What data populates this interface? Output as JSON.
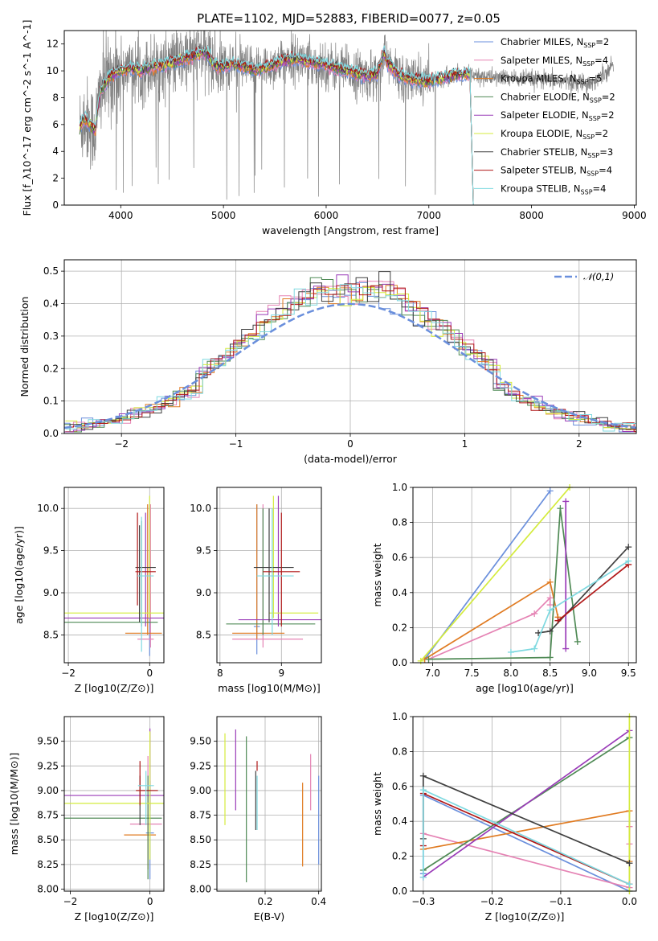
{
  "figure": {
    "title": "PLATE=1102, MJD=52883, FIBERID=0077, z=0.05"
  },
  "models": [
    {
      "name": "Chabrier MILES",
      "nssp": "2",
      "color": "#6a8fdc"
    },
    {
      "name": "Salpeter MILES",
      "nssp": "4",
      "color": "#e583b4"
    },
    {
      "name": "Kroupa MILES",
      "nssp": "5",
      "color": "#e07b22"
    },
    {
      "name": "Chabrier ELODIE",
      "nssp": "2",
      "color": "#4f8a55"
    },
    {
      "name": "Salpeter ELODIE",
      "nssp": "2",
      "color": "#9a3bb8"
    },
    {
      "name": "Kroupa ELODIE",
      "nssp": "2",
      "color": "#d4eb3c"
    },
    {
      "name": "Chabrier STELIB",
      "nssp": "3",
      "color": "#404040"
    },
    {
      "name": "Salpeter STELIB",
      "nssp": "4",
      "color": "#b01717"
    },
    {
      "name": "Kroupa STELIB",
      "nssp": "4",
      "color": "#7fd9e0"
    }
  ],
  "chart_data": [
    {
      "id": "spectrum",
      "type": "line",
      "xlabel": "wavelength [Angstrom, rest frame]",
      "ylabel": "Flux [f_λ10^-17 erg cm^-2 s^-1 A^-1]",
      "xlim": [
        3450,
        9020
      ],
      "ylim": [
        0,
        13
      ],
      "xticks": [
        4000,
        5000,
        6000,
        7000,
        8000,
        9000
      ],
      "yticks": [
        0,
        2,
        4,
        6,
        8,
        10,
        12
      ],
      "grid": false,
      "legend": "top-right",
      "data_series": {
        "name": "",
        "color": "#808080",
        "x_range": [
          3600,
          8800
        ]
      },
      "model_knots": {
        "x": [
          3600,
          3650,
          3700,
          3750,
          3800,
          3900,
          4000,
          4100,
          4200,
          4300,
          4400,
          4500,
          4600,
          4700,
          4800,
          4850,
          4900,
          5000,
          5100,
          5200,
          5300,
          5400,
          5500,
          5600,
          5700,
          5800,
          5900,
          6000,
          6100,
          6200,
          6300,
          6400,
          6500,
          6560,
          6600,
          6700,
          6800,
          6900,
          7000,
          7100,
          7200,
          7300,
          7400
        ],
        "y": [
          5.8,
          6.5,
          6.0,
          5.5,
          8.5,
          9.6,
          10.0,
          10.2,
          10.0,
          10.3,
          10.4,
          10.6,
          10.8,
          11.1,
          11.4,
          11.2,
          10.5,
          10.3,
          10.5,
          10.3,
          10.0,
          10.2,
          10.5,
          10.8,
          10.9,
          10.7,
          10.6,
          10.4,
          10.2,
          10.0,
          9.8,
          9.6,
          9.8,
          11.3,
          10.6,
          9.7,
          9.4,
          9.3,
          9.2,
          9.4,
          9.6,
          9.7,
          9.8
        ]
      }
    },
    {
      "id": "residuals",
      "type": "line",
      "xlabel": "(data-model)/error",
      "ylabel": "Normed distribution",
      "xlim": [
        -2.5,
        2.5
      ],
      "ylim": [
        0,
        0.535
      ],
      "xticks": [
        -2,
        -1,
        0,
        1,
        2
      ],
      "yticks": [
        0.0,
        0.1,
        0.2,
        0.3,
        0.4,
        0.5
      ],
      "grid": true,
      "legend": "top-right",
      "normal_label": "𝒩(0,1)",
      "normal_color": "#6a8fdc"
    },
    {
      "id": "z_age",
      "type": "scatter",
      "xlabel": "Z [log10(Z/Z⊙)]",
      "ylabel": "age [log10(age/yr)]",
      "xlim": [
        -2.1,
        0.35
      ],
      "ylim": [
        8.17,
        10.25
      ],
      "xticks": [
        -2,
        0
      ],
      "yticks": [
        8.5,
        9.0,
        9.5,
        10.0
      ],
      "grid": true,
      "points": [
        {
          "model": 0,
          "x": 0.0,
          "y": 8.6,
          "xlo": 0.0,
          "xhi": 0.0,
          "ylo": 8.25,
          "yhi": 10.05
        },
        {
          "model": 1,
          "x": 0.02,
          "y": 8.45,
          "xlo": -0.3,
          "xhi": 0.1,
          "ylo": 8.35,
          "yhi": 10.05
        },
        {
          "model": 2,
          "x": -0.05,
          "y": 8.52,
          "xlo": -0.6,
          "xhi": 0.3,
          "ylo": 8.5,
          "yhi": 10.05
        },
        {
          "model": 3,
          "x": -0.2,
          "y": 8.65,
          "xlo": -2.1,
          "xhi": 0.2,
          "ylo": 8.6,
          "yhi": 9.85
        },
        {
          "model": 4,
          "x": -0.1,
          "y": 8.7,
          "xlo": -2.1,
          "xhi": 0.35,
          "ylo": 8.6,
          "yhi": 9.95
        },
        {
          "model": 5,
          "x": 0.0,
          "y": 8.76,
          "xlo": -2.1,
          "xhi": 0.35,
          "ylo": 8.7,
          "yhi": 10.15
        },
        {
          "model": 6,
          "x": -0.25,
          "y": 9.3,
          "xlo": -0.35,
          "xhi": 0.15,
          "ylo": 8.65,
          "yhi": 9.8
        },
        {
          "model": 7,
          "x": -0.3,
          "y": 9.25,
          "xlo": -0.35,
          "xhi": 0.15,
          "ylo": 8.85,
          "yhi": 9.95
        },
        {
          "model": 8,
          "x": -0.2,
          "y": 9.2,
          "xlo": -0.3,
          "xhi": 0.1,
          "ylo": 8.3,
          "yhi": 9.9
        }
      ]
    },
    {
      "id": "mass_age",
      "type": "scatter",
      "xlabel": "mass [log10(M/M⊙)]",
      "ylabel": "",
      "xlim": [
        7.95,
        9.65
      ],
      "ylim": [
        8.17,
        10.25
      ],
      "xticks": [
        8,
        9
      ],
      "yticks": [
        8.5,
        9.0,
        9.5,
        10.0
      ],
      "grid": true,
      "points": [
        {
          "model": 0,
          "x": 8.6,
          "y": 8.6,
          "xlo": 8.55,
          "xhi": 8.65,
          "ylo": 8.27,
          "yhi": 10.05
        },
        {
          "model": 1,
          "x": 8.7,
          "y": 8.45,
          "xlo": 8.2,
          "xhi": 9.35,
          "ylo": 8.35,
          "yhi": 10.05
        },
        {
          "model": 2,
          "x": 8.6,
          "y": 8.52,
          "xlo": 8.2,
          "xhi": 9.05,
          "ylo": 8.45,
          "yhi": 10.05
        },
        {
          "model": 3,
          "x": 8.7,
          "y": 8.63,
          "xlo": 8.1,
          "xhi": 9.55,
          "ylo": 8.5,
          "yhi": 10.0
        },
        {
          "model": 4,
          "x": 8.95,
          "y": 8.68,
          "xlo": 8.3,
          "xhi": 9.65,
          "ylo": 8.6,
          "yhi": 10.15
        },
        {
          "model": 5,
          "x": 8.87,
          "y": 8.76,
          "xlo": 8.8,
          "xhi": 9.6,
          "ylo": 8.7,
          "yhi": 10.15
        },
        {
          "model": 6,
          "x": 8.8,
          "y": 9.3,
          "xlo": 8.55,
          "xhi": 9.2,
          "ylo": 8.65,
          "yhi": 10.0
        },
        {
          "model": 7,
          "x": 9.0,
          "y": 9.25,
          "xlo": 8.7,
          "xhi": 9.3,
          "ylo": 8.6,
          "yhi": 9.95
        },
        {
          "model": 8,
          "x": 8.85,
          "y": 9.2,
          "xlo": 8.6,
          "xhi": 9.2,
          "ylo": 8.5,
          "yhi": 10.0
        }
      ]
    },
    {
      "id": "age_weight",
      "type": "line",
      "xlabel": "age [log10(age/yr)]",
      "ylabel": "mass weight",
      "xlim": [
        6.75,
        9.6
      ],
      "ylim": [
        0,
        1.0
      ],
      "xticks": [
        7.0,
        7.5,
        8.0,
        8.5,
        9.0,
        9.5
      ],
      "yticks": [
        0.0,
        0.2,
        0.4,
        0.6,
        0.8,
        1.0
      ],
      "grid": true,
      "series": [
        {
          "model": 0,
          "x": [
            6.9,
            8.5
          ],
          "y": [
            0.02,
            0.98
          ]
        },
        {
          "model": 1,
          "x": [
            6.95,
            8.3,
            8.5,
            8.5
          ],
          "y": [
            0.02,
            0.28,
            0.37,
            0.33
          ]
        },
        {
          "model": 2,
          "x": [
            6.9,
            8.5,
            8.6
          ],
          "y": [
            0.02,
            0.46,
            0.26
          ]
        },
        {
          "model": 3,
          "x": [
            6.95,
            8.5,
            8.63,
            8.85
          ],
          "y": [
            0.02,
            0.03,
            0.88,
            0.12
          ]
        },
        {
          "model": 4,
          "x": [
            8.7,
            8.7
          ],
          "y": [
            0.08,
            0.92
          ]
        },
        {
          "model": 5,
          "x": [
            6.85,
            8.75
          ],
          "y": [
            0.01,
            1.0
          ]
        },
        {
          "model": 6,
          "x": [
            8.35,
            8.5,
            9.5
          ],
          "y": [
            0.17,
            0.18,
            0.66
          ]
        },
        {
          "model": 7,
          "x": [
            8.6,
            9.5
          ],
          "y": [
            0.24,
            0.56
          ]
        },
        {
          "model": 8,
          "x": [
            8.0,
            8.3,
            8.5,
            9.5
          ],
          "y": [
            0.06,
            0.08,
            0.3,
            0.58
          ]
        }
      ]
    },
    {
      "id": "z_mass",
      "type": "scatter",
      "xlabel": "Z [log10(Z/Z⊙)]",
      "ylabel": "mass [log10(M/M⊙)]",
      "xlim": [
        -2.15,
        0.35
      ],
      "ylim": [
        7.98,
        9.75
      ],
      "xticks": [
        -2,
        0
      ],
      "yticks": [
        8.0,
        8.25,
        8.5,
        8.75,
        9.0,
        9.25,
        9.5
      ],
      "grid": true,
      "points": [
        {
          "model": 0,
          "x": 0.0,
          "y": 8.57,
          "xlo": -0.1,
          "xhi": 0.1,
          "ylo": 8.1,
          "yhi": 9.1
        },
        {
          "model": 1,
          "x": -0.05,
          "y": 8.66,
          "xlo": -0.5,
          "xhi": 0.3,
          "ylo": 8.3,
          "yhi": 9.35
        },
        {
          "model": 2,
          "x": -0.05,
          "y": 8.55,
          "xlo": -0.65,
          "xhi": 0.15,
          "ylo": 8.2,
          "yhi": 8.95
        },
        {
          "model": 3,
          "x": -0.05,
          "y": 8.72,
          "xlo": -2.15,
          "xhi": 0.3,
          "ylo": 8.1,
          "yhi": 9.15
        },
        {
          "model": 4,
          "x": 0.0,
          "y": 8.95,
          "xlo": -2.15,
          "xhi": 0.35,
          "ylo": 8.8,
          "yhi": 9.63
        },
        {
          "model": 5,
          "x": 0.0,
          "y": 8.87,
          "xlo": -2.15,
          "xhi": 0.35,
          "ylo": 8.3,
          "yhi": 9.6
        },
        {
          "model": 6,
          "x": -0.25,
          "y": 9.0,
          "xlo": -0.35,
          "xhi": 0.2,
          "ylo": 8.65,
          "yhi": 9.15
        },
        {
          "model": 7,
          "x": -0.25,
          "y": 9.0,
          "xlo": -0.35,
          "xhi": 0.2,
          "ylo": 8.85,
          "yhi": 9.3
        },
        {
          "model": 8,
          "x": -0.1,
          "y": 9.05,
          "xlo": -0.3,
          "xhi": 0.1,
          "ylo": 8.65,
          "yhi": 9.2
        }
      ]
    },
    {
      "id": "ebv_mass",
      "type": "scatter",
      "xlabel": "E(B-V)",
      "ylabel": "",
      "xlim": [
        0.02,
        0.41
      ],
      "ylim": [
        7.98,
        9.75
      ],
      "xticks": [
        0.2,
        0.4
      ],
      "yticks": [
        8.0,
        8.25,
        8.5,
        8.75,
        9.0,
        9.25,
        9.5
      ],
      "grid": true,
      "points": [
        {
          "model": 0,
          "x": 0.4,
          "ylo": 8.25,
          "yhi": 9.15
        },
        {
          "model": 1,
          "x": 0.37,
          "ylo": 8.8,
          "yhi": 9.37
        },
        {
          "model": 2,
          "x": 0.34,
          "ylo": 8.23,
          "yhi": 9.08
        },
        {
          "model": 3,
          "x": 0.13,
          "ylo": 8.07,
          "yhi": 9.55
        },
        {
          "model": 4,
          "x": 0.09,
          "ylo": 8.8,
          "yhi": 9.62
        },
        {
          "model": 5,
          "x": 0.05,
          "ylo": 8.65,
          "yhi": 9.58
        },
        {
          "model": 6,
          "x": 0.165,
          "ylo": 8.6,
          "yhi": 9.2
        },
        {
          "model": 7,
          "x": 0.17,
          "ylo": 9.2,
          "yhi": 9.3
        },
        {
          "model": 8,
          "x": 0.17,
          "ylo": 8.6,
          "yhi": 9.15
        }
      ]
    },
    {
      "id": "z_weight",
      "type": "line",
      "xlabel": "Z [log10(Z/Z⊙)]",
      "ylabel": "mass weight",
      "xlim": [
        -0.315,
        0.01
      ],
      "ylim": [
        0,
        1.0
      ],
      "xticks": [
        -0.3,
        -0.2,
        -0.1,
        0.0
      ],
      "yticks": [
        0.0,
        0.2,
        0.4,
        0.6,
        0.8,
        1.0
      ],
      "grid": true,
      "series": [
        {
          "model": 0,
          "x": [
            -0.3,
            -0.3,
            0.0
          ],
          "y": [
            0.1,
            0.55,
            0.0
          ]
        },
        {
          "model": 1,
          "x": [
            -0.3,
            0.0,
            0.0,
            0.0
          ],
          "y": [
            0.33,
            0.02,
            0.37,
            0.27
          ]
        },
        {
          "model": 2,
          "x": [
            -0.3,
            0.0,
            0.0
          ],
          "y": [
            0.24,
            0.46,
            0.17
          ]
        },
        {
          "model": 3,
          "x": [
            -0.3,
            0.0
          ],
          "y": [
            0.12,
            0.88
          ]
        },
        {
          "model": 4,
          "x": [
            -0.3,
            0.0
          ],
          "y": [
            0.08,
            0.92
          ]
        },
        {
          "model": 5,
          "x": [
            0.0,
            0.0
          ],
          "y": [
            0.0,
            1.0
          ]
        },
        {
          "model": 6,
          "x": [
            -0.3,
            -0.3,
            0.0
          ],
          "y": [
            0.3,
            0.66,
            0.16
          ]
        },
        {
          "model": 7,
          "x": [
            -0.3,
            -0.3,
            0.0
          ],
          "y": [
            0.26,
            0.56,
            0.04
          ]
        },
        {
          "model": 8,
          "x": [
            -0.3,
            -0.3,
            0.0
          ],
          "y": [
            0.08,
            0.58,
            0.04
          ]
        }
      ]
    }
  ]
}
